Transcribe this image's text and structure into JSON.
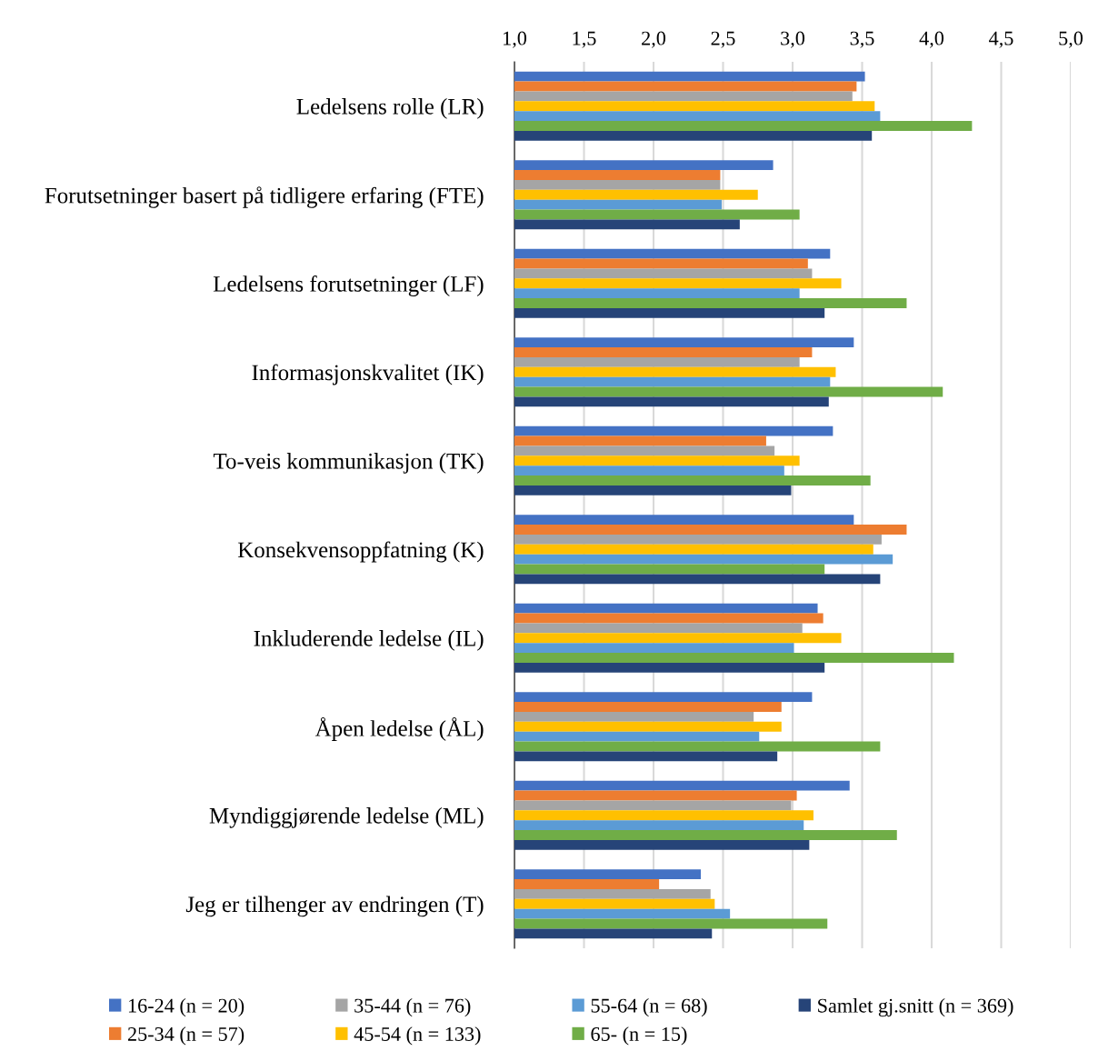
{
  "chart_data": {
    "type": "bar",
    "orientation": "horizontal",
    "categories": [
      "Ledelsens rolle (LR)",
      "Forutsetninger basert på tidligere erfaring (FTE)",
      "Ledelsens forutsetninger (LF)",
      "Informasjonskvalitet (IK)",
      "To-veis kommunikasjon (TK)",
      "Konsekvensoppfatning (K)",
      "Inkluderende ledelse (IL)",
      "Åpen ledelse (ÅL)",
      "Myndiggjørende ledelse (ML)",
      "Jeg er tilhenger av endringen (T)"
    ],
    "series": [
      {
        "name": "16-24 (n = 20)",
        "color": "#4472c4",
        "values": [
          3.52,
          2.86,
          3.27,
          3.44,
          3.29,
          3.44,
          3.18,
          3.14,
          3.41,
          2.34
        ]
      },
      {
        "name": "25-34 (n = 57)",
        "color": "#ed7d31",
        "values": [
          3.46,
          2.48,
          3.11,
          3.14,
          2.81,
          3.82,
          3.22,
          2.92,
          3.03,
          2.04
        ]
      },
      {
        "name": "35-44 (n = 76)",
        "color": "#a5a5a5",
        "values": [
          3.43,
          2.48,
          3.14,
          3.05,
          2.87,
          3.64,
          3.07,
          2.72,
          2.99,
          2.41
        ]
      },
      {
        "name": "45-54 (n = 133)",
        "color": "#ffc000",
        "values": [
          3.59,
          2.75,
          3.35,
          3.31,
          3.05,
          3.58,
          3.35,
          2.92,
          3.15,
          2.44
        ]
      },
      {
        "name": "55-64 (n = 68)",
        "color": "#5b9bd5",
        "values": [
          3.63,
          2.49,
          3.05,
          3.27,
          2.94,
          3.72,
          3.01,
          2.76,
          3.08,
          2.55
        ]
      },
      {
        "name": "65- (n = 15)",
        "color": "#70ad47",
        "values": [
          4.29,
          3.05,
          3.82,
          4.08,
          3.56,
          3.23,
          4.16,
          3.63,
          3.75,
          3.25
        ]
      },
      {
        "name": "Samlet gj.snitt (n = 369)",
        "color": "#264478",
        "values": [
          3.57,
          2.62,
          3.23,
          3.26,
          2.99,
          3.63,
          3.23,
          2.89,
          3.12,
          2.42
        ]
      }
    ],
    "xlim": [
      1,
      5
    ],
    "xticks": [
      {
        "value": 1,
        "label": "1,0"
      },
      {
        "value": 1.5,
        "label": "1,5"
      },
      {
        "value": 2,
        "label": "2,0"
      },
      {
        "value": 2.5,
        "label": "2,5"
      },
      {
        "value": 3,
        "label": "3,0"
      },
      {
        "value": 3.5,
        "label": "3,5"
      },
      {
        "value": 4,
        "label": "4,0"
      },
      {
        "value": 4.5,
        "label": "4,5"
      },
      {
        "value": 5,
        "label": "5,0"
      }
    ],
    "grid": "x",
    "legend": "bottom"
  }
}
